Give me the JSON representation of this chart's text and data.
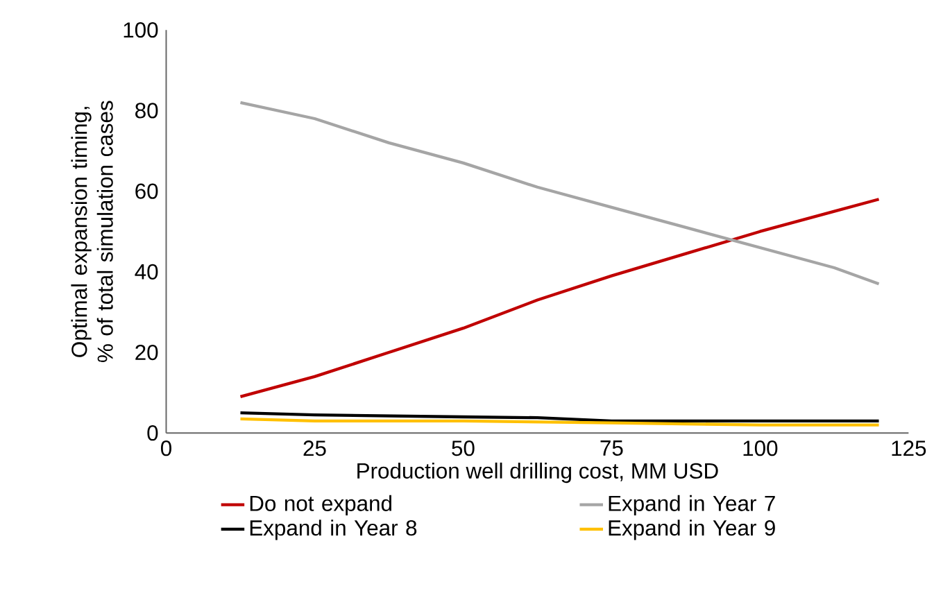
{
  "chart_data": {
    "type": "line",
    "xlabel": "Production well drilling cost, MM USD",
    "ylabel": "Optimal expansion timing, % of total simulation cases",
    "xlim": [
      0,
      125
    ],
    "xticks": [
      0,
      25,
      50,
      75,
      100,
      125
    ],
    "ylim": [
      0,
      100
    ],
    "yticks": [
      0,
      20,
      40,
      60,
      80,
      100
    ],
    "grid": false,
    "legend": "bottom",
    "marker": "none",
    "line_style": "solid",
    "series": [
      {
        "name": "Do not expand",
        "color": "#c00000",
        "x": [
          12.5,
          25,
          37.5,
          50,
          62.5,
          75,
          87.5,
          100,
          112.5,
          120
        ],
        "values": [
          9,
          14,
          20,
          26,
          33,
          39,
          44.5,
          50,
          55,
          58
        ]
      },
      {
        "name": "Expand in Year 7",
        "color": "#a5a5a5",
        "x": [
          12.5,
          25,
          37.5,
          50,
          62.5,
          75,
          87.5,
          100,
          112.5,
          120
        ],
        "values": [
          82,
          78,
          72,
          67,
          61,
          56,
          51,
          46,
          41,
          37
        ]
      },
      {
        "name": "Expand in Year 8",
        "color": "#000000",
        "x": [
          12.5,
          25,
          50,
          62.5,
          75,
          100,
          120
        ],
        "values": [
          5,
          4.5,
          4,
          3.8,
          3,
          3,
          3
        ]
      },
      {
        "name": "Expand in Year 9",
        "color": "#ffc000",
        "x": [
          12.5,
          25,
          50,
          75,
          100,
          120
        ],
        "values": [
          3.5,
          3,
          3,
          2.5,
          2,
          2
        ]
      }
    ]
  }
}
